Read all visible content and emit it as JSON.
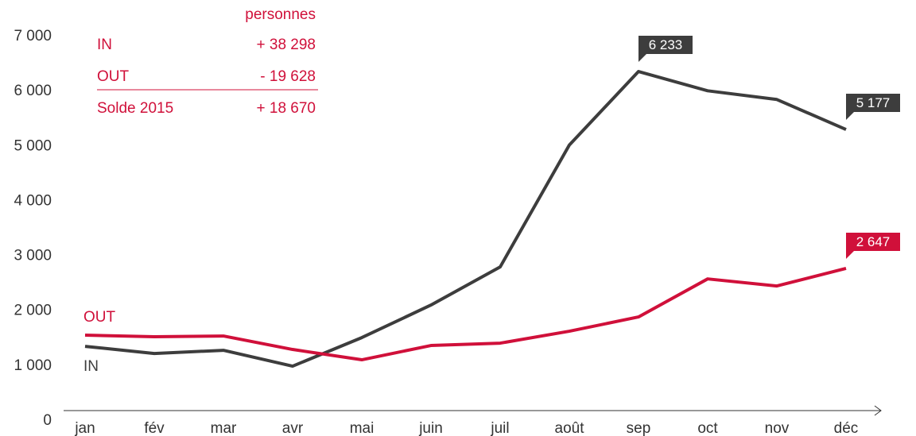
{
  "chart_data": {
    "type": "line",
    "categories": [
      "jan",
      "fév",
      "mar",
      "avr",
      "mai",
      "juin",
      "juil",
      "août",
      "sep",
      "oct",
      "nov",
      "déc"
    ],
    "series": [
      {
        "name": "IN",
        "color": "#3d3d3d",
        "values": [
          1228,
          1098,
          1156,
          867,
          1387,
          1980,
          2673,
          4894,
          6233,
          5882,
          5723,
          5177
        ],
        "value_labels": [
          null,
          null,
          null,
          null,
          null,
          null,
          null,
          null,
          "6 233",
          null,
          null,
          "5 177"
        ]
      },
      {
        "name": "OUT",
        "color": "#d0103a",
        "values": [
          1431,
          1402,
          1416,
          1171,
          983,
          1243,
          1286,
          1503,
          1763,
          2456,
          2327,
          2647
        ],
        "value_labels": [
          null,
          null,
          null,
          null,
          null,
          null,
          null,
          null,
          null,
          null,
          null,
          "2 647"
        ]
      }
    ],
    "ylim": [
      0,
      7000
    ],
    "yticks": [
      0,
      {
        "value": 1000,
        "label": "1 000"
      },
      {
        "value": 2000,
        "label": "2 000"
      },
      {
        "value": 3000,
        "label": "3 000"
      },
      {
        "value": 4000,
        "label": "4 000"
      },
      {
        "value": 5000,
        "label": "5 000"
      },
      {
        "value": 6000,
        "label": "6 000"
      },
      {
        "value": 7000,
        "label": "7 000"
      }
    ],
    "summary": {
      "header": "personnes",
      "rows": [
        [
          "IN",
          "+ 38 298"
        ],
        [
          "OUT",
          "- 19 628"
        ],
        [
          "Solde 2015",
          "+ 18 670"
        ]
      ]
    }
  }
}
